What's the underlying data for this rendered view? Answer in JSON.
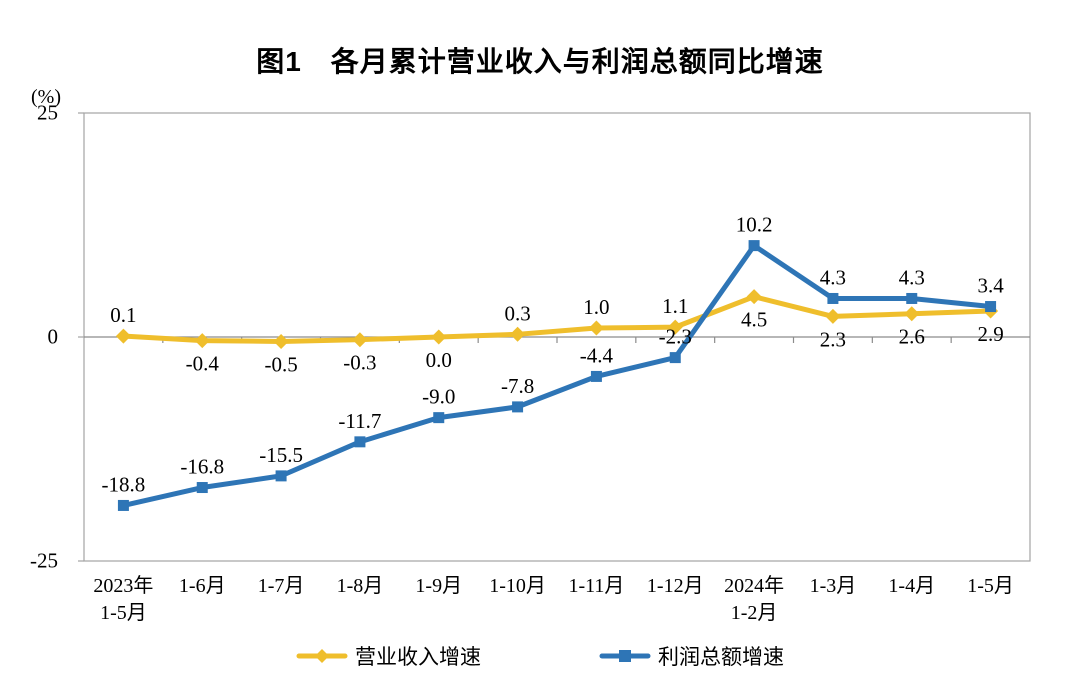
{
  "title": "图1　各月累计营业收入与利润总额同比增速",
  "unit_label": "(%)",
  "chart_data": {
    "type": "line",
    "title": "图1 各月累计营业收入与利润总额同比增速",
    "ylabel": "(%)",
    "ylim": [
      -25,
      25
    ],
    "yticks": [
      "25",
      "0",
      "-25"
    ],
    "ytick_values": [
      25,
      0,
      -25
    ],
    "grid": false,
    "legend_position": "bottom",
    "axis_color": "#a3a3a3",
    "categories": [
      [
        "2023年",
        "1-5月"
      ],
      [
        "1-6月"
      ],
      [
        "1-7月"
      ],
      [
        "1-8月"
      ],
      [
        "1-9月"
      ],
      [
        "1-10月"
      ],
      [
        "1-11月"
      ],
      [
        "1-12月"
      ],
      [
        "2024年",
        "1-2月"
      ],
      [
        "1-3月"
      ],
      [
        "1-4月"
      ],
      [
        "1-5月"
      ]
    ],
    "series": [
      {
        "name": "营业收入增速",
        "color": "#EFBE2C",
        "marker": "diamond",
        "values": [
          0.1,
          -0.4,
          -0.5,
          -0.3,
          0.0,
          0.3,
          1.0,
          1.1,
          4.5,
          2.3,
          2.6,
          2.9
        ],
        "label_side": [
          "above",
          "below",
          "below",
          "below",
          "below",
          "above",
          "above",
          "above",
          "below",
          "below",
          "below",
          "below"
        ]
      },
      {
        "name": "利润总额增速",
        "color": "#2E75B6",
        "marker": "square",
        "values": [
          -18.8,
          -16.8,
          -15.5,
          -11.7,
          -9.0,
          -7.8,
          -4.4,
          -2.3,
          10.2,
          4.3,
          4.3,
          3.4
        ],
        "label_side": [
          "above",
          "above",
          "above",
          "above",
          "above",
          "above",
          "above",
          "above",
          "above",
          "above",
          "above",
          "above"
        ]
      }
    ]
  }
}
